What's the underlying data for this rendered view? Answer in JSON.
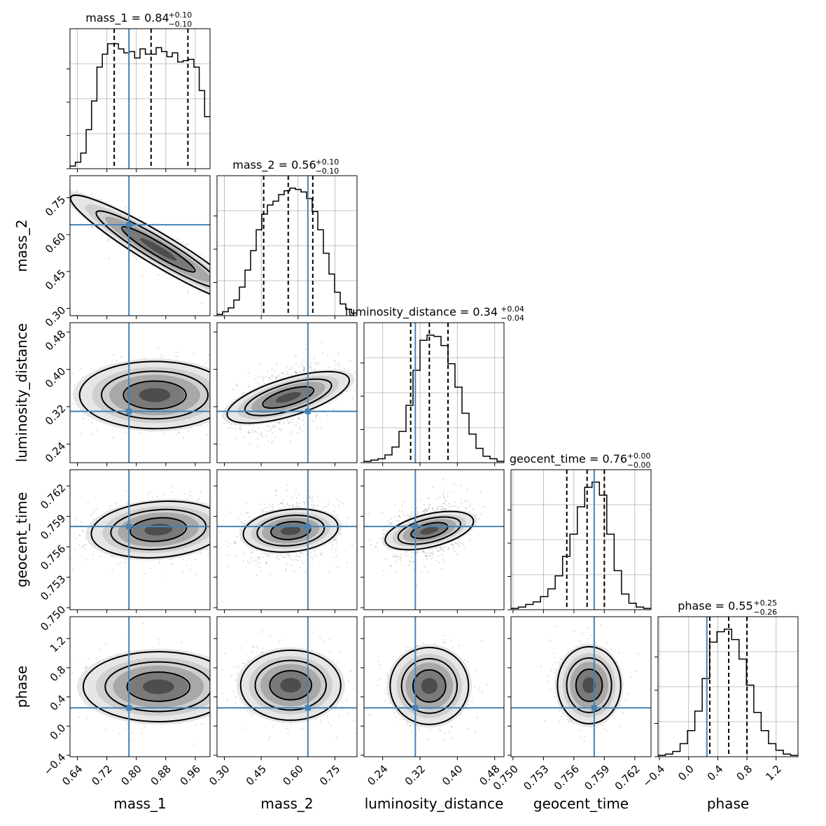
{
  "chart_data": {
    "type": "corner",
    "parameters": [
      {
        "name": "mass_1",
        "label": "mass_1",
        "range": [
          0.62,
          1.0
        ],
        "ticks": [
          0.64,
          0.72,
          0.8,
          0.88,
          0.96
        ],
        "tick_labels": [
          "0.64",
          "0.72",
          "0.80",
          "0.88",
          "0.96"
        ],
        "truth": 0.78,
        "quantiles": [
          0.74,
          0.84,
          0.94
        ],
        "title": "mass_1 = 0.84",
        "title_plus": "+0.10",
        "title_minus": "−0.10"
      },
      {
        "name": "mass_2",
        "label": "mass_2",
        "range": [
          0.27,
          0.84
        ],
        "ticks": [
          0.3,
          0.45,
          0.6,
          0.75
        ],
        "tick_labels": [
          "0.30",
          "0.45",
          "0.60",
          "0.75"
        ],
        "truth": 0.64,
        "quantiles": [
          0.46,
          0.56,
          0.66
        ],
        "title": "mass_2 = 0.56",
        "title_plus": "+0.10",
        "title_minus": "−0.10"
      },
      {
        "name": "luminosity_distance",
        "label": "luminosity_distance",
        "range": [
          0.2,
          0.5
        ],
        "ticks": [
          0.24,
          0.32,
          0.4,
          0.48
        ],
        "tick_labels": [
          "0.24",
          "0.32",
          "0.40",
          "0.48"
        ],
        "truth": 0.31,
        "quantiles": [
          0.3,
          0.34,
          0.38
        ],
        "title": "luminosity_distance = 0.34",
        "title_plus": "+0.04",
        "title_minus": "−0.04"
      },
      {
        "name": "geocent_time",
        "label": "geocent_time",
        "range": [
          0.7498,
          0.7636
        ],
        "ticks": [
          0.75,
          0.753,
          0.756,
          0.759,
          0.762
        ],
        "tick_labels": [
          "0.750",
          "0.753",
          "0.756",
          "0.759",
          "0.762"
        ],
        "truth": 0.758,
        "quantiles": [
          0.7553,
          0.7573,
          0.759
        ],
        "title": "geocent_time = 0.76",
        "title_plus": "+0.00",
        "title_minus": "−0.00"
      },
      {
        "name": "phase",
        "label": "phase",
        "range": [
          -0.42,
          1.5
        ],
        "ticks": [
          -0.4,
          0.0,
          0.4,
          0.8,
          1.2
        ],
        "tick_labels": [
          "−0.4",
          "0.0",
          "0.4",
          "0.8",
          "1.2"
        ],
        "truth": 0.25,
        "quantiles": [
          0.29,
          0.55,
          0.8
        ],
        "title": "phase = 0.55",
        "title_plus": "+0.25",
        "title_minus": "−0.26"
      }
    ],
    "histograms": [
      [
        0.02,
        0.05,
        0.12,
        0.3,
        0.52,
        0.78,
        0.88,
        0.96,
        0.96,
        0.92,
        0.89,
        0.9,
        0.85,
        0.92,
        0.88,
        0.88,
        0.93,
        0.9,
        0.86,
        0.89,
        0.82,
        0.83,
        0.84,
        0.78,
        0.6,
        0.4
      ],
      [
        0.01,
        0.03,
        0.06,
        0.12,
        0.22,
        0.35,
        0.5,
        0.66,
        0.78,
        0.85,
        0.88,
        0.93,
        0.96,
        0.98,
        0.97,
        0.95,
        0.9,
        0.8,
        0.66,
        0.48,
        0.32,
        0.18,
        0.09,
        0.05,
        0.02
      ],
      [
        0.01,
        0.02,
        0.03,
        0.06,
        0.12,
        0.24,
        0.44,
        0.71,
        0.94,
        0.98,
        0.97,
        0.9,
        0.76,
        0.58,
        0.38,
        0.22,
        0.11,
        0.05,
        0.03,
        0.01
      ],
      [
        0.01,
        0.02,
        0.04,
        0.06,
        0.1,
        0.16,
        0.26,
        0.41,
        0.58,
        0.79,
        0.94,
        0.98,
        0.88,
        0.58,
        0.3,
        0.12,
        0.05,
        0.02,
        0.01
      ],
      [
        0.01,
        0.02,
        0.04,
        0.1,
        0.2,
        0.35,
        0.6,
        0.88,
        0.96,
        0.98,
        0.9,
        0.75,
        0.55,
        0.34,
        0.2,
        0.1,
        0.05,
        0.02,
        0.01
      ]
    ],
    "pair_modes": [
      {
        "row": 1,
        "col": 0,
        "center": [
          0.86,
          0.54
        ],
        "sd": [
          0.075,
          0.075
        ],
        "corr": -0.9
      },
      {
        "row": 2,
        "col": 0,
        "center": [
          0.85,
          0.345
        ],
        "sd": [
          0.085,
          0.03
        ],
        "corr": 0.0
      },
      {
        "row": 2,
        "col": 1,
        "center": [
          0.56,
          0.34
        ],
        "sd": [
          0.09,
          0.032
        ],
        "corr": 0.45
      },
      {
        "row": 3,
        "col": 0,
        "center": [
          0.86,
          0.7577
        ],
        "sd": [
          0.085,
          0.0012
        ],
        "corr": 0.2
      },
      {
        "row": 3,
        "col": 1,
        "center": [
          0.57,
          0.7576
        ],
        "sd": [
          0.085,
          0.0013
        ],
        "corr": 0.15
      },
      {
        "row": 3,
        "col": 2,
        "center": [
          0.34,
          0.7576
        ],
        "sd": [
          0.035,
          0.0013
        ],
        "corr": 0.3
      },
      {
        "row": 4,
        "col": 0,
        "center": [
          0.86,
          0.54
        ],
        "sd": [
          0.085,
          0.2
        ],
        "corr": 0.0
      },
      {
        "row": 4,
        "col": 1,
        "center": [
          0.57,
          0.56
        ],
        "sd": [
          0.085,
          0.2
        ],
        "corr": 0.0
      },
      {
        "row": 4,
        "col": 2,
        "center": [
          0.34,
          0.55
        ],
        "sd": [
          0.035,
          0.22
        ],
        "corr": 0.0
      },
      {
        "row": 4,
        "col": 3,
        "center": [
          0.7575,
          0.56
        ],
        "sd": [
          0.0013,
          0.22
        ],
        "corr": 0.0
      }
    ],
    "truth_color": "#4682b4",
    "grid": true,
    "density_levels": [
      0.39,
      0.86,
      0.99
    ]
  }
}
